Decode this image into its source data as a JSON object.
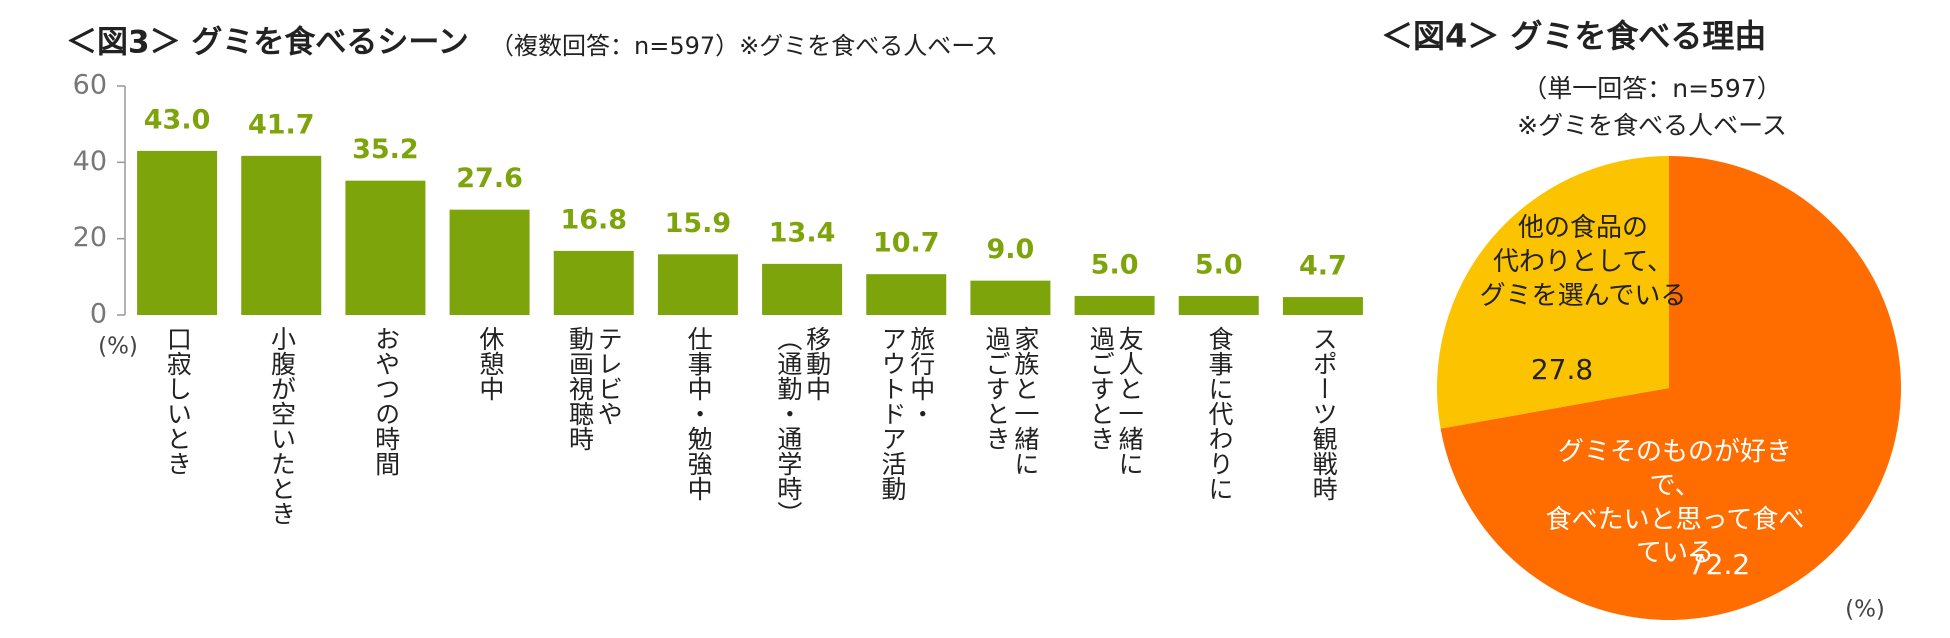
{
  "chart_data": [
    {
      "type": "bar",
      "title": "＜図3＞ グミを食べるシーン",
      "subtitle": "（複数回答：n=597）※グミを食べる人ベース",
      "y_unit": "(%)",
      "categories": [
        "口寂しいとき",
        "小腹が空いたとき",
        "おやつの時間",
        "休憩中",
        "テレビや\n動画視聴時",
        "仕事中・勉強中",
        "移動中\n（通勤・通学時）",
        "旅行中・\nアウトドア活動",
        "家族と一緒に\n過ごすとき",
        "友人と一緒に\n過ごすとき",
        "食事に代わりに",
        "スポーツ観戦時"
      ],
      "values": [
        43.0,
        41.7,
        35.2,
        27.6,
        16.8,
        15.9,
        13.4,
        10.7,
        9.0,
        5.0,
        5.0,
        4.7
      ],
      "value_labels": [
        "43.0",
        "41.7",
        "35.2",
        "27.6",
        "16.8",
        "15.9",
        "13.4",
        "10.7",
        "9.0",
        "5.0",
        "5.0",
        "4.7"
      ],
      "color": "#7ea40b",
      "ylim": [
        0,
        60
      ],
      "yticks": [
        0,
        20,
        40,
        60
      ]
    },
    {
      "type": "pie",
      "title": "＜図4＞ グミを食べる理由",
      "subtitle": [
        "（単一回答：n=597）",
        "※グミを食べる人ベース"
      ],
      "unit": "(%)",
      "categories": [
        "グミそのものが好きで、\n食べたいと思って食べている",
        "他の食品の\n代わりとして、\nグミを選んでいる"
      ],
      "values": [
        72.2,
        27.8
      ],
      "colors": [
        "#ff6d00",
        "#fbc300"
      ]
    }
  ]
}
